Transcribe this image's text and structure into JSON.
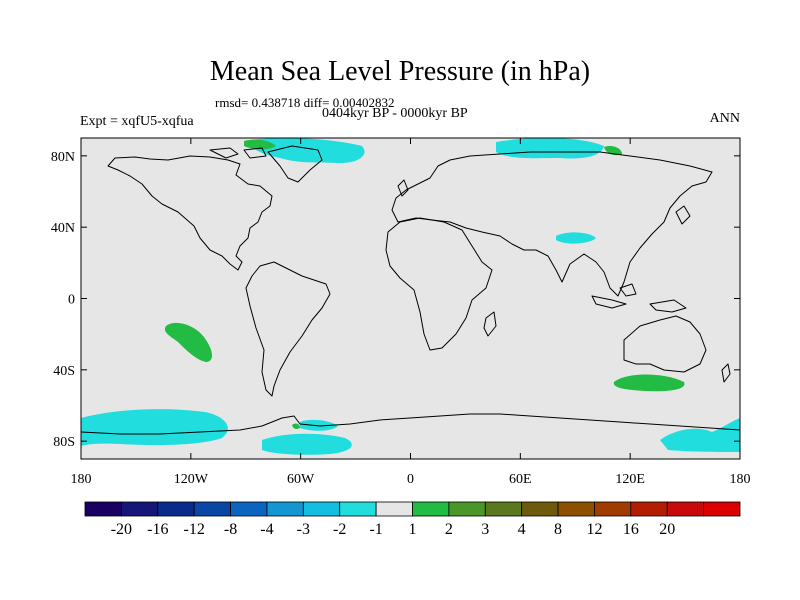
{
  "title": "Mean Sea Level Pressure (in hPa)",
  "stats": "rmsd= 0.438718 diff= 0.00402832",
  "period": "0404kyr BP - 0000kyr BP",
  "experiment": "Expt = xqfU5-xqfua",
  "season": "ANN",
  "map": {
    "projection": "cylindrical-equidistant",
    "lon_range": [
      -180,
      180
    ],
    "lat_range": [
      -90,
      90
    ],
    "background_color": "#e6e6e6",
    "y_ticks": [
      {
        "value": 80,
        "label": "80N"
      },
      {
        "value": 40,
        "label": "40N"
      },
      {
        "value": 0,
        "label": "0"
      },
      {
        "value": -40,
        "label": "40S"
      },
      {
        "value": -80,
        "label": "80S"
      }
    ],
    "x_ticks": [
      {
        "value": -180,
        "label": "180"
      },
      {
        "value": -120,
        "label": "120W"
      },
      {
        "value": -60,
        "label": "60W"
      },
      {
        "value": 0,
        "label": "0"
      },
      {
        "value": 60,
        "label": "60E"
      },
      {
        "value": 120,
        "label": "120E"
      },
      {
        "value": 180,
        "label": "180"
      }
    ],
    "anomaly_regions": [
      {
        "name": "south-pacific-positive",
        "level": "1 to 2",
        "color": "#22bb44"
      },
      {
        "name": "south-indian-positive",
        "level": "1 to 2",
        "color": "#22bb44"
      },
      {
        "name": "arctic-greenland-negative",
        "level": "-2 to -1",
        "color": "#22dddd"
      },
      {
        "name": "arctic-siberia-negative",
        "level": "-2 to -1",
        "color": "#22dddd"
      },
      {
        "name": "central-asia-negative",
        "level": "-2 to -1",
        "color": "#22dddd"
      },
      {
        "name": "southern-ocean-negative",
        "level": "-2 to -1",
        "color": "#22dddd"
      }
    ]
  },
  "colorbar": {
    "colors": [
      "#1a0060",
      "#15157a",
      "#0a2a8c",
      "#0a46a5",
      "#0a64c0",
      "#1496d2",
      "#14bee0",
      "#22dddd",
      "#e6e6e6",
      "#22bb44",
      "#4a9628",
      "#5a781e",
      "#6e5a0f",
      "#8c5000",
      "#a03c00",
      "#b41e00",
      "#c80a0a",
      "#dc0000"
    ],
    "labels": [
      "-20",
      "-16",
      "-12",
      "-8",
      "-4",
      "-3",
      "-2",
      "-1",
      "1",
      "2",
      "3",
      "4",
      "8",
      "12",
      "16",
      "20"
    ]
  }
}
